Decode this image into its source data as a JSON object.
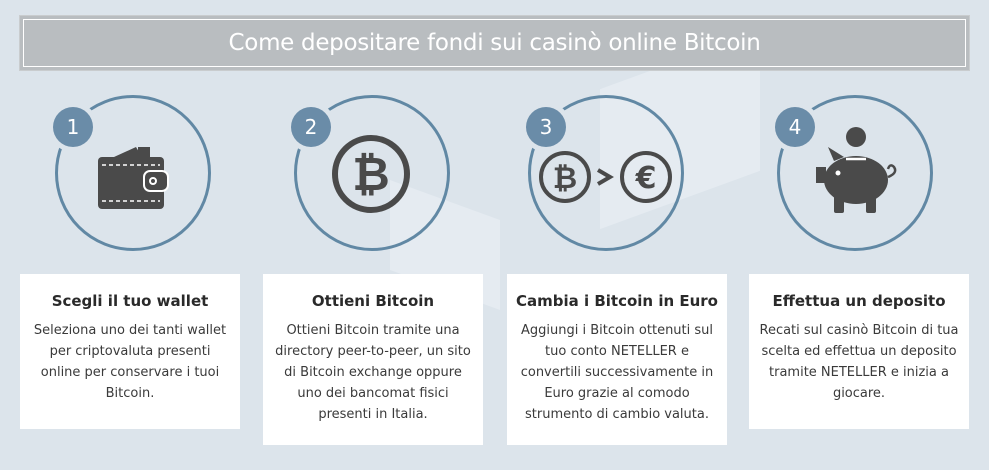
{
  "title": "Come depositare fondi sui casinò online Bitcoin",
  "colors": {
    "accent": "#6188a4",
    "badge": "#6a8ca8",
    "icon": "#4a4a4a",
    "title_bar": "#b9bdc0",
    "background": "#dce4eb"
  },
  "steps": [
    {
      "number": "1",
      "icon": "wallet-icon",
      "heading": "Scegli il tuo wallet",
      "text": "Seleziona uno dei tanti wallet per criptovaluta presenti online per conservare i tuoi Bitcoin."
    },
    {
      "number": "2",
      "icon": "bitcoin-coin-icon",
      "heading": "Ottieni Bitcoin",
      "text": "Ottieni Bitcoin tramite una directory peer-to-peer, un sito di Bitcoin exchange oppure uno dei bancomat fisici presenti in Italia."
    },
    {
      "number": "3",
      "icon": "bitcoin-to-euro-icon",
      "heading": "Cambia i Bitcoin in Euro",
      "text": "Aggiungi i Bitcoin ottenuti sul tuo conto NETELLER e convertili successivamente in Euro grazie al comodo strumento di cambio valuta."
    },
    {
      "number": "4",
      "icon": "piggy-bank-icon",
      "heading": "Effettua un deposito",
      "text": "Recati sul casinò Bitcoin di tua scelta ed effettua un deposito tramite NETELLER e inizia a giocare."
    }
  ]
}
